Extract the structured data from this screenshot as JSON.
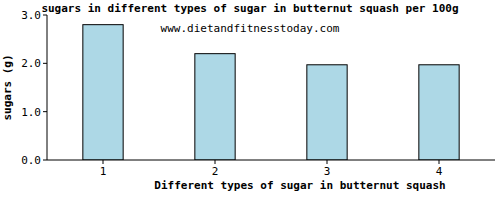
{
  "chart_data": {
    "type": "bar",
    "title": "sugars in different types of sugar in butternut squash per 100g",
    "subtitle": "www.dietandfitnesstoday.com",
    "x_label": "Different types of sugar in butternut squash",
    "y_label": "sugars (g)",
    "categories": [
      "1",
      "2",
      "3",
      "4"
    ],
    "values": [
      2.8,
      2.2,
      1.97,
      1.97
    ],
    "color": "#add8e6",
    "ylim": [
      0,
      3
    ],
    "yticks": [
      {
        "value": 0,
        "label": "0.0"
      },
      {
        "value": 1,
        "label": "1.0"
      },
      {
        "value": 2,
        "label": "2.0"
      },
      {
        "value": 3,
        "label": "3.0"
      }
    ],
    "grid": false
  }
}
